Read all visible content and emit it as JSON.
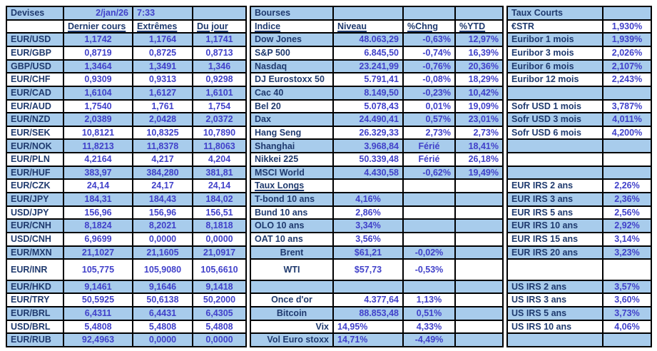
{
  "header": {
    "devises_title": "Devises",
    "date": "2/jan/26",
    "time": "7:33",
    "devises_cols": [
      "Dernier cours",
      "Extrêmes",
      "Du jour"
    ],
    "bourses_title": "Bourses",
    "bourses_cols": [
      "Indice",
      "Niveau",
      "%Chng",
      "%YTD"
    ],
    "taux_title": "Taux Courts",
    "estr_label": "€STR",
    "estr_value": "1,930%"
  },
  "colors": {
    "row_shade": "#a8ccec",
    "label_navy": "#1f3a6e",
    "value_blue": "#4141ca",
    "border": "#000000"
  },
  "devises_rows": [
    {
      "pair": "EUR/USD",
      "last": "1,1742",
      "extremes": "1,1764",
      "dujour": "1,1741"
    },
    {
      "pair": "EUR/GBP",
      "last": "0,8719",
      "extremes": "0,8725",
      "dujour": "0,8713"
    },
    {
      "pair": "GBP/USD",
      "last": "1,3464",
      "extremes": "1,3491",
      "dujour": "1,346"
    },
    {
      "pair": "EUR/CHF",
      "last": "0,9309",
      "extremes": "0,9313",
      "dujour": "0,9298"
    },
    {
      "pair": "EUR/CAD",
      "last": "1,6104",
      "extremes": "1,6127",
      "dujour": "1,6101"
    },
    {
      "pair": "EUR/AUD",
      "last": "1,7540",
      "extremes": "1,761",
      "dujour": "1,754"
    },
    {
      "pair": "EUR/NZD",
      "last": "2,0389",
      "extremes": "2,0428",
      "dujour": "2,0372"
    },
    {
      "pair": "EUR/SEK",
      "last": "10,8121",
      "extremes": "10,8325",
      "dujour": "10,7890"
    },
    {
      "pair": "EUR/NOK",
      "last": "11,8213",
      "extremes": "11,8378",
      "dujour": "11,8063"
    },
    {
      "pair": "EUR/PLN",
      "last": "4,2164",
      "extremes": "4,217",
      "dujour": "4,204"
    },
    {
      "pair": "EUR/HUF",
      "last": "383,97",
      "extremes": "384,280",
      "dujour": "381,81"
    },
    {
      "pair": "EUR/CZK",
      "last": "24,14",
      "extremes": "24,17",
      "dujour": "24,14"
    },
    {
      "pair": "EUR/JPY",
      "last": "184,31",
      "extremes": "184,43",
      "dujour": "184,02"
    },
    {
      "pair": "USD/JPY",
      "last": "156,96",
      "extremes": "156,96",
      "dujour": "156,51"
    },
    {
      "pair": "EUR/CNH",
      "last": "8,1824",
      "extremes": "8,2021",
      "dujour": "8,1818"
    },
    {
      "pair": "USD/CNH",
      "last": "6,9699",
      "extremes": "0,0000",
      "dujour": "0,0000"
    },
    {
      "pair": "EUR/MXN",
      "last": "21,1027",
      "extremes": "21,1605",
      "dujour": "21,0917"
    },
    {
      "pair": "EUR/INR",
      "last": "105,775",
      "extremes": "105,9080",
      "dujour": "105,6610"
    },
    {
      "pair": "EUR/HKD",
      "last": "9,1461",
      "extremes": "9,1646",
      "dujour": "9,1418"
    },
    {
      "pair": "EUR/TRY",
      "last": "50,5925",
      "extremes": "50,6138",
      "dujour": "50,2000"
    },
    {
      "pair": "EUR/BRL",
      "last": "6,4311",
      "extremes": "6,4431",
      "dujour": "6,4305"
    },
    {
      "pair": "USD/BRL",
      "last": "5,4808",
      "extremes": "5,4808",
      "dujour": "5,4808"
    },
    {
      "pair": "EUR/RUB",
      "last": "92,4963",
      "extremes": "0,0000",
      "dujour": "0,0000"
    }
  ],
  "bourses_rows": [
    {
      "type": "index",
      "label": "Dow Jones",
      "niveau": "48.063,29",
      "chng": "-0,63%",
      "ytd": "12,97%"
    },
    {
      "type": "index",
      "label": "S&P 500",
      "niveau": "6.845,50",
      "chng": "-0,74%",
      "ytd": "16,39%"
    },
    {
      "type": "index",
      "label": "Nasdaq",
      "niveau": "23.241,99",
      "chng": "-0,76%",
      "ytd": "20,36%"
    },
    {
      "type": "index",
      "label": "DJ Eurostoxx 50",
      "niveau": "5.791,41",
      "chng": "-0,08%",
      "ytd": "18,29%"
    },
    {
      "type": "index",
      "label": "Cac 40",
      "niveau": "8.149,50",
      "chng": "-0,23%",
      "ytd": "10,42%"
    },
    {
      "type": "index",
      "label": "Bel 20",
      "niveau": "5.078,43",
      "chng": "0,01%",
      "ytd": "19,09%"
    },
    {
      "type": "index",
      "label": "Dax",
      "niveau": "24.490,41",
      "chng": "0,57%",
      "ytd": "23,01%"
    },
    {
      "type": "index",
      "label": "Hang Seng",
      "niveau": "26.329,33",
      "chng": "2,73%",
      "ytd": "2,73%"
    },
    {
      "type": "index",
      "label": "Shanghai",
      "niveau": "3.968,84",
      "chng": "Férié",
      "ytd": "18,41%"
    },
    {
      "type": "index",
      "label": "Nikkei 225",
      "niveau": "50.339,48",
      "chng": "Férié",
      "ytd": "26,18%"
    },
    {
      "type": "index",
      "label": "MSCI World",
      "niveau": "4.430,58",
      "chng": "-0,62%",
      "ytd": "19,49%"
    },
    {
      "type": "section",
      "label": "Taux Longs",
      "niveau": "",
      "chng": "",
      "ytd": ""
    },
    {
      "type": "bond",
      "label": "T-bond 10 ans",
      "niveau": "4,16%",
      "chng": "",
      "ytd": ""
    },
    {
      "type": "bond",
      "label": "Bund 10 ans",
      "niveau": "2,86%",
      "chng": "",
      "ytd": ""
    },
    {
      "type": "bond",
      "label": "OLO 10 ans",
      "niveau": "3,34%",
      "chng": "",
      "ytd": ""
    },
    {
      "type": "bond",
      "label": "OAT 10 ans",
      "niveau": "3,56%",
      "chng": "",
      "ytd": ""
    },
    {
      "type": "commodity",
      "label": "Brent",
      "niveau": "$61,21",
      "chng": "-0,02%",
      "ytd": ""
    },
    {
      "type": "commodity",
      "label": "WTI",
      "niveau": "$57,73",
      "chng": "-0,53%",
      "ytd": ""
    },
    {
      "type": "empty",
      "label": "",
      "niveau": "",
      "chng": "",
      "ytd": ""
    },
    {
      "type": "metal",
      "label": "Once d'or",
      "niveau": "4.377,64",
      "chng": "1,13%",
      "ytd": ""
    },
    {
      "type": "metal",
      "label": "Bitcoin",
      "niveau": "88.853,48",
      "chng": "0,51%",
      "ytd": ""
    },
    {
      "type": "vol",
      "label": "Vix",
      "niveau": "14,95%",
      "chng": "4,33%",
      "ytd": ""
    },
    {
      "type": "vol",
      "label": "Vol Euro stoxx",
      "niveau": "14,71%",
      "chng": "-4,49%",
      "ytd": ""
    }
  ],
  "taux_rows": [
    {
      "label": "Euribor 1 mois",
      "value": "1,939%"
    },
    {
      "label": "Euribor 3 mois",
      "value": "2,026%"
    },
    {
      "label": "Euribor 6 mois",
      "value": "2,107%"
    },
    {
      "label": "Euribor 12 mois",
      "value": "2,243%"
    },
    {
      "label": "",
      "value": ""
    },
    {
      "label": "Sofr USD 1 mois",
      "value": "3,787%"
    },
    {
      "label": "Sofr USD 3 mois",
      "value": "4,011%"
    },
    {
      "label": "Sofr USD 6 mois",
      "value": "4,200%"
    },
    {
      "label": "",
      "value": ""
    },
    {
      "label": "",
      "value": ""
    },
    {
      "label": "",
      "value": ""
    },
    {
      "label": "EUR IRS 2 ans",
      "value": "2,26%"
    },
    {
      "label": "EUR IRS 3 ans",
      "value": "2,36%"
    },
    {
      "label": "EUR IRS 5 ans",
      "value": "2,56%"
    },
    {
      "label": "EUR IRS 10 ans",
      "value": "2,92%"
    },
    {
      "label": "EUR IRS 15 ans",
      "value": "3,14%"
    },
    {
      "label": "EUR IRS 20 ans",
      "value": "3,23%"
    },
    {
      "label": "",
      "value": ""
    },
    {
      "label": "US IRS 2 ans",
      "value": "3,57%"
    },
    {
      "label": "US IRS 3 ans",
      "value": "3,60%"
    },
    {
      "label": "US IRS 5 ans",
      "value": "3,73%"
    },
    {
      "label": "US IRS 10 ans",
      "value": "4,06%"
    },
    {
      "label": "",
      "value": ""
    }
  ]
}
